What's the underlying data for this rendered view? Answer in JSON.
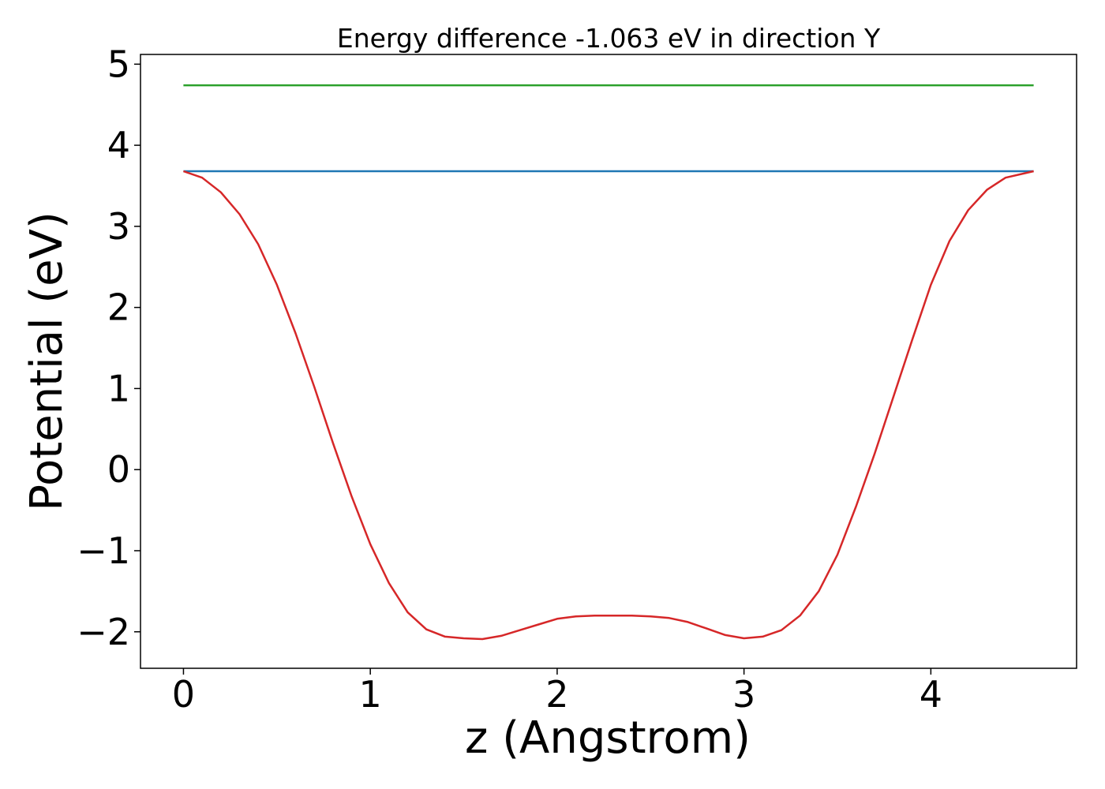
{
  "chart_data": {
    "type": "line",
    "title": "Energy difference -1.063 eV in direction Y",
    "xlabel": "z (Angstrom)",
    "ylabel": "Potential (eV)",
    "xlim": [
      -0.23,
      4.78
    ],
    "ylim": [
      -2.45,
      5.12
    ],
    "xticks": [
      0,
      1,
      2,
      3,
      4
    ],
    "yticks": [
      -2,
      -1,
      0,
      1,
      2,
      3,
      4,
      5
    ],
    "xtick_labels": [
      "0",
      "1",
      "2",
      "3",
      "4"
    ],
    "ytick_labels": [
      "−2",
      "−1",
      "0",
      "1",
      "2",
      "3",
      "4",
      "5"
    ],
    "grid": false,
    "legend": "none",
    "series": [
      {
        "color": "#2ca02c",
        "x": [
          0,
          4.55
        ],
        "y": [
          4.74,
          4.74
        ]
      },
      {
        "color": "#1f77b4",
        "x": [
          0,
          4.55
        ],
        "y": [
          3.68,
          3.68
        ]
      },
      {
        "color": "#d62728",
        "x": [
          0,
          0.1,
          0.2,
          0.3,
          0.4,
          0.5,
          0.6,
          0.7,
          0.8,
          0.9,
          1.0,
          1.1,
          1.2,
          1.3,
          1.4,
          1.5,
          1.6,
          1.7,
          1.8,
          1.9,
          2.0,
          2.1,
          2.2,
          2.3,
          2.4,
          2.5,
          2.6,
          2.7,
          2.8,
          2.9,
          3.0,
          3.1,
          3.2,
          3.3,
          3.4,
          3.5,
          3.6,
          3.7,
          3.8,
          3.9,
          4.0,
          4.1,
          4.2,
          4.3,
          4.4,
          4.55
        ],
        "y": [
          3.68,
          3.6,
          3.42,
          3.15,
          2.78,
          2.28,
          1.68,
          1.02,
          0.33,
          -0.33,
          -0.92,
          -1.4,
          -1.76,
          -1.97,
          -2.06,
          -2.08,
          -2.09,
          -2.05,
          -1.98,
          -1.91,
          -1.84,
          -1.81,
          -1.8,
          -1.8,
          -1.8,
          -1.81,
          -1.83,
          -1.88,
          -1.96,
          -2.04,
          -2.08,
          -2.06,
          -1.98,
          -1.8,
          -1.5,
          -1.05,
          -0.45,
          0.2,
          0.9,
          1.6,
          2.28,
          2.82,
          3.2,
          3.45,
          3.6,
          3.68
        ]
      }
    ]
  }
}
